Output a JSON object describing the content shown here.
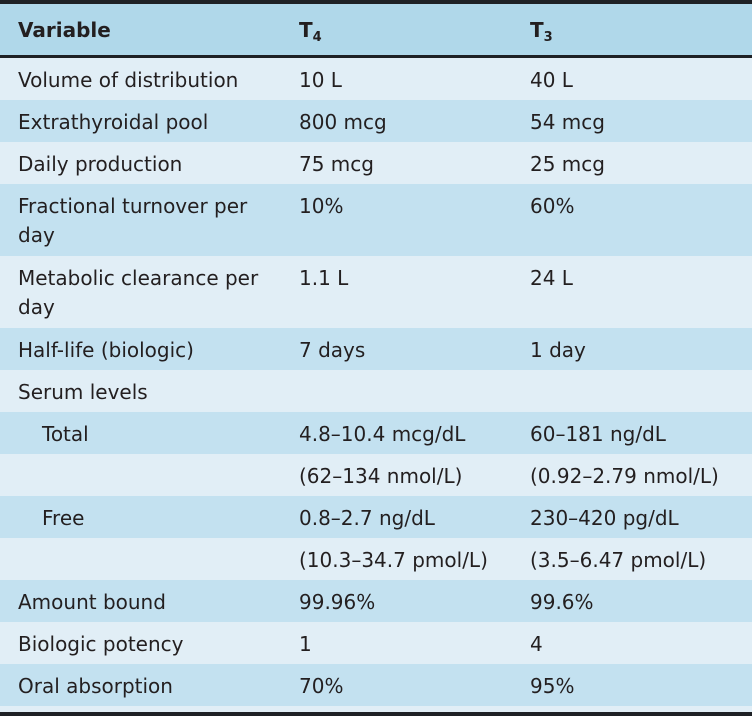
{
  "table": {
    "headers": [
      {
        "text": "Variable",
        "sub": ""
      },
      {
        "text": "T",
        "sub": "4"
      },
      {
        "text": "T",
        "sub": "3"
      }
    ],
    "rows": [
      {
        "variable": "Volume of distribution",
        "t4": "10 L",
        "t3": "40 L",
        "indent": false
      },
      {
        "variable": "Extrathyroidal pool",
        "t4": "800 mcg",
        "t3": "54 mcg",
        "indent": false
      },
      {
        "variable": "Daily production",
        "t4": "75 mcg",
        "t3": "25 mcg",
        "indent": false
      },
      {
        "variable": "Fractional turnover per day",
        "t4": "10%",
        "t3": "60%",
        "indent": false
      },
      {
        "variable": "Metabolic clearance per day",
        "t4": "1.1 L",
        "t3": "24 L",
        "indent": false
      },
      {
        "variable": "Half-life (biologic)",
        "t4": "7 days",
        "t3": "1 day",
        "indent": false
      },
      {
        "variable": "Serum levels",
        "t4": "",
        "t3": "",
        "indent": false
      },
      {
        "variable": "Total",
        "t4": "4.8–10.4 mcg/dL",
        "t3": "60–181 ng/dL",
        "indent": true
      },
      {
        "variable": "",
        "t4": "(62–134 nmol/L)",
        "t3": "(0.92–2.79 nmol/L)",
        "indent": true
      },
      {
        "variable": "Free",
        "t4": "0.8–2.7 ng/dL",
        "t3": "230–420 pg/dL",
        "indent": true
      },
      {
        "variable": "",
        "t4": "(10.3–34.7 pmol/L)",
        "t3": "(3.5–6.47 pmol/L)",
        "indent": true
      },
      {
        "variable": "Amount bound",
        "t4": "99.96%",
        "t3": "99.6%",
        "indent": false
      },
      {
        "variable": "Biologic potency",
        "t4": "1",
        "t3": "4",
        "indent": false
      },
      {
        "variable": "Oral absorption",
        "t4": "70%",
        "t3": "95%",
        "indent": false
      }
    ]
  },
  "colors": {
    "header_bg": "#b0d8ea",
    "row_light": "#e1eef6",
    "row_dark": "#c3e1f0",
    "rule": "#1e2125"
  }
}
